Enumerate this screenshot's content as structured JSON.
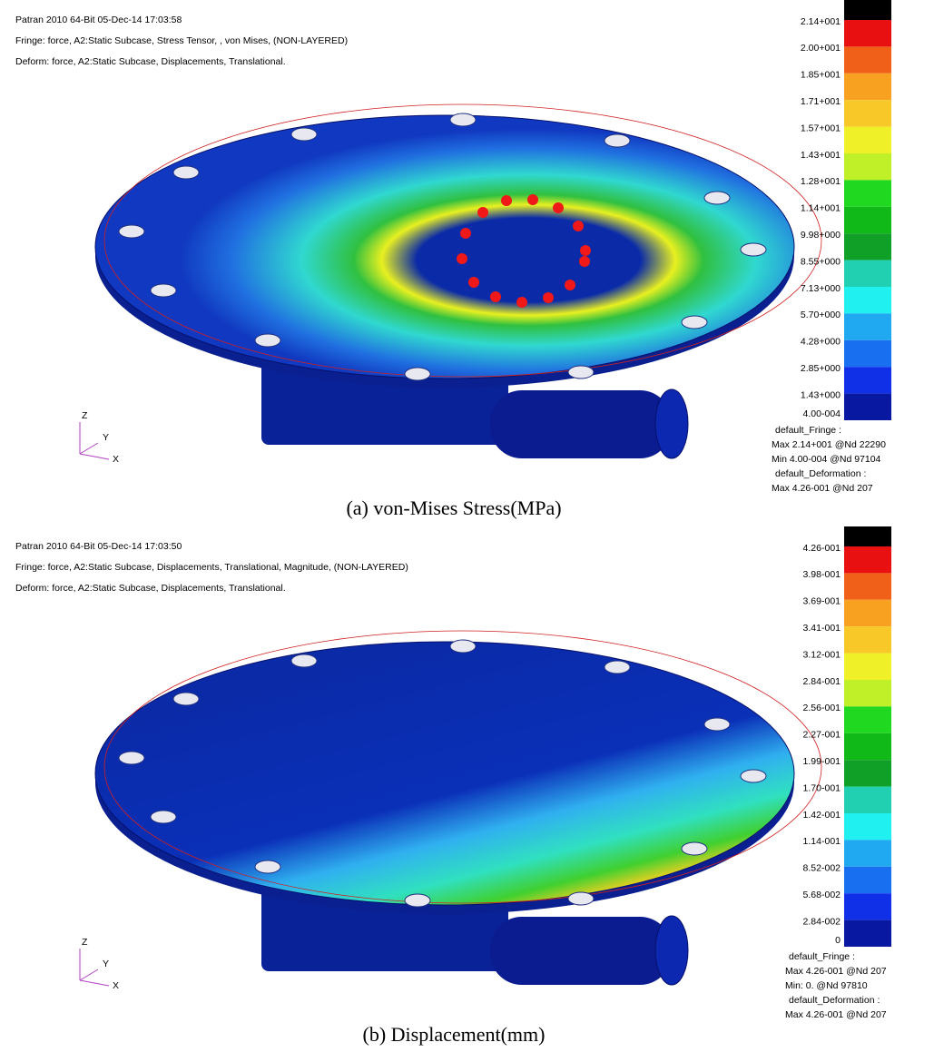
{
  "panels": [
    {
      "header": [
        "Patran 2010 64-Bit 05-Dec-14 17:03:58",
        "Fringe: force, A2:Static Subcase, Stress Tensor, , von Mises, (NON-LAYERED)",
        "Deform: force, A2:Static Subcase, Displacements, Translational."
      ],
      "legend_labels": [
        "2.14+001",
        "2.00+001",
        "1.85+001",
        "1.71+001",
        "1.57+001",
        "1.43+001",
        "1.28+001",
        "1.14+001",
        "9.98+000",
        "8.55+000",
        "7.13+000",
        "5.70+000",
        "4.28+000",
        "2.85+000",
        "1.43+000",
        "4.00-004"
      ],
      "info": [
        "default_Fringe :",
        "Max 2.14+001 @Nd 22290",
        "Min 4.00-004 @Nd 97104",
        "default_Deformation :",
        "Max 4.26-001 @Nd 207"
      ],
      "triad": [
        "Z",
        "Y",
        "X"
      ],
      "caption": "(a)  von-Mises Stress(MPa)"
    },
    {
      "header": [
        "Patran 2010 64-Bit 05-Dec-14 17:03:50",
        "Fringe: force, A2:Static Subcase, Displacements, Translational, Magnitude, (NON-LAYERED)",
        "Deform: force, A2:Static Subcase, Displacements, Translational."
      ],
      "legend_labels": [
        "4.26-001",
        "3.98-001",
        "3.69-001",
        "3.41-001",
        "3.12-001",
        "2.84-001",
        "2.56-001",
        "2.27-001",
        "1.99-001",
        "1.70-001",
        "1.42-001",
        "1.14-001",
        "8.52-002",
        "5.68-002",
        "2.84-002",
        "0"
      ],
      "info": [
        "default_Fringe :",
        "Max 4.26-001 @Nd 207",
        "Min: 0. @Nd 97810",
        "default_Deformation :",
        "Max 4.26-001 @Nd 207"
      ],
      "triad": [
        "Z",
        "Y",
        "X"
      ],
      "caption": "(b)  Displacement(mm)"
    }
  ]
}
